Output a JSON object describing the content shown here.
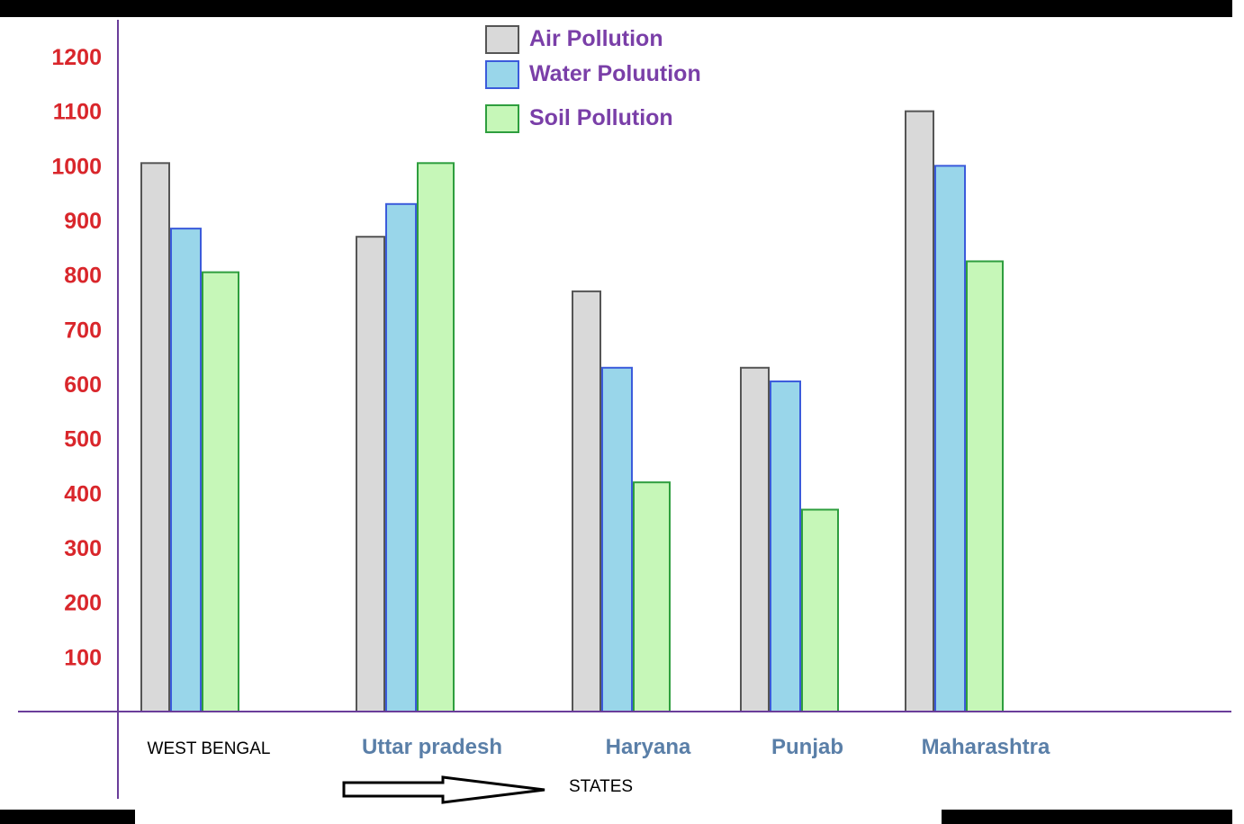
{
  "chart_data": {
    "type": "bar",
    "title": "",
    "xlabel": "STATES",
    "ylabel": "",
    "categories": [
      "WEST BENGAL",
      "Uttar pradesh",
      "Haryana",
      "Punjab",
      "Maharashtra"
    ],
    "series": [
      {
        "name": "Air Pollution",
        "color": "#d9d9d9",
        "stroke": "#555555",
        "values": [
          1005,
          870,
          770,
          630,
          1100
        ]
      },
      {
        "name": "Water Poluution",
        "color": "#99d6ea",
        "stroke": "#3b5bdb",
        "values": [
          885,
          930,
          630,
          605,
          1000
        ]
      },
      {
        "name": "Soil Pollution",
        "color": "#c6f7b8",
        "stroke": "#2e9e3e",
        "values": [
          805,
          1005,
          420,
          370,
          825
        ]
      }
    ],
    "yticks": [
      100,
      200,
      300,
      400,
      500,
      600,
      700,
      800,
      900,
      1000,
      1100,
      1200
    ],
    "ylim": [
      0,
      1200
    ],
    "grid": false,
    "legend": "top-center",
    "axis_color": "#6a3d9a"
  }
}
